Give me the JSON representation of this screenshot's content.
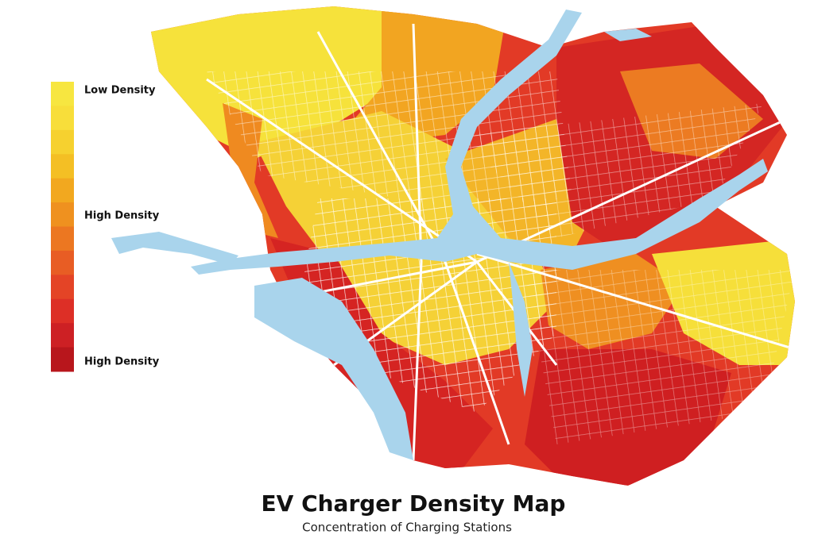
{
  "map": {
    "title": "EV Charger Density Map",
    "subtitle": "Concentration of Charging Stations",
    "legend": {
      "colors": [
        "#f7e640",
        "#f8de3a",
        "#f6d12f",
        "#f4bf24",
        "#f2a81f",
        "#ef911f",
        "#ec7721",
        "#e85d24",
        "#e44426",
        "#dd2f26",
        "#cd2024",
        "#b8161c"
      ],
      "labels": [
        "Low Density",
        "High Density",
        "High Density"
      ]
    }
  }
}
